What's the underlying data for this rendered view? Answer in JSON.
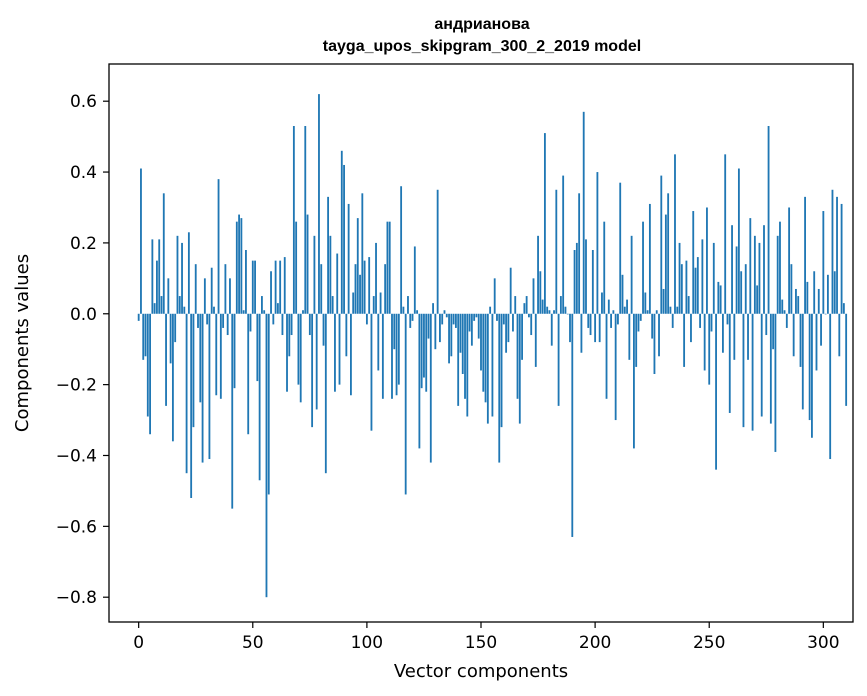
{
  "chart_data": {
    "type": "bar",
    "title": "андрианова",
    "subtitle": "tayga_upos_skipgram_300_2_2019 model",
    "xlabel": "Vector components",
    "ylabel": "Components values",
    "xlim": [
      -13,
      313
    ],
    "ylim": [
      -0.87,
      0.705
    ],
    "xticks": [
      0,
      50,
      100,
      150,
      200,
      250,
      300
    ],
    "yticks": [
      -0.8,
      -0.6,
      -0.4,
      -0.2,
      0.0,
      0.2,
      0.4,
      0.6
    ],
    "ytick_labels": [
      "−0.8",
      "−0.6",
      "−0.4",
      "−0.2",
      "0.0",
      "0.2",
      "0.4",
      "0.6"
    ],
    "bar_color": "#1f77b4",
    "grid": false,
    "values": [
      -0.02,
      0.41,
      -0.13,
      -0.12,
      -0.29,
      -0.34,
      0.21,
      0.03,
      0.15,
      0.21,
      0.05,
      0.34,
      -0.26,
      0.1,
      -0.14,
      -0.36,
      -0.08,
      0.22,
      0.05,
      0.2,
      0.02,
      -0.45,
      0.23,
      -0.52,
      -0.32,
      0.14,
      -0.04,
      -0.25,
      -0.42,
      0.1,
      -0.03,
      -0.41,
      0.13,
      0.02,
      -0.23,
      0.38,
      -0.24,
      -0.04,
      0.14,
      -0.06,
      0.1,
      -0.55,
      -0.21,
      0.26,
      0.28,
      0.27,
      0.01,
      0.18,
      -0.34,
      -0.05,
      0.15,
      0.15,
      -0.19,
      -0.47,
      0.05,
      0.01,
      -0.8,
      -0.51,
      0.12,
      -0.03,
      0.15,
      0.03,
      0.15,
      -0.06,
      0.16,
      -0.22,
      -0.12,
      -0.06,
      0.53,
      0.26,
      -0.2,
      -0.25,
      0.01,
      0.53,
      0.28,
      -0.06,
      -0.32,
      0.22,
      -0.27,
      0.62,
      0.14,
      -0.09,
      -0.45,
      0.33,
      0.22,
      0.05,
      -0.22,
      0.17,
      -0.2,
      0.46,
      0.42,
      -0.12,
      0.31,
      -0.23,
      0.06,
      0.14,
      0.27,
      0.11,
      0.34,
      0.15,
      -0.03,
      0.16,
      -0.33,
      0.05,
      0.2,
      -0.16,
      0.06,
      -0.24,
      0.14,
      0.26,
      0.26,
      -0.24,
      -0.1,
      -0.23,
      -0.2,
      0.36,
      0.02,
      -0.51,
      0.05,
      -0.04,
      -0.02,
      0.19,
      0.01,
      -0.38,
      -0.21,
      -0.18,
      -0.22,
      -0.07,
      -0.42,
      0.03,
      -0.1,
      0.35,
      -0.08,
      -0.03,
      0.01,
      -0.01,
      -0.14,
      -0.12,
      -0.03,
      -0.04,
      -0.26,
      -0.11,
      -0.17,
      -0.24,
      -0.29,
      -0.05,
      -0.09,
      -0.02,
      -0.01,
      -0.07,
      -0.16,
      -0.22,
      -0.25,
      -0.31,
      0.02,
      -0.29,
      0.1,
      -0.02,
      -0.42,
      -0.32,
      -0.03,
      -0.11,
      -0.08,
      0.13,
      -0.05,
      0.05,
      -0.24,
      -0.31,
      -0.13,
      0.03,
      0.05,
      -0.01,
      -0.06,
      0.1,
      -0.15,
      0.22,
      0.12,
      0.04,
      0.51,
      0.02,
      0.01,
      -0.09,
      0.01,
      0.35,
      -0.26,
      0.05,
      0.39,
      0.02,
      0.0,
      -0.08,
      -0.63,
      0.18,
      0.2,
      0.34,
      -0.11,
      0.57,
      0.21,
      -0.04,
      -0.06,
      0.18,
      -0.08,
      0.4,
      -0.08,
      0.06,
      0.26,
      -0.24,
      0.04,
      -0.04,
      0.01,
      -0.3,
      -0.03,
      0.37,
      0.11,
      0.02,
      0.04,
      -0.13,
      0.22,
      -0.38,
      -0.15,
      -0.05,
      -0.02,
      0.26,
      0.06,
      0.01,
      0.31,
      -0.07,
      -0.17,
      0.01,
      -0.12,
      0.39,
      0.07,
      0.28,
      0.34,
      0.02,
      -0.04,
      0.45,
      0.02,
      0.2,
      0.14,
      -0.15,
      0.15,
      0.05,
      -0.08,
      0.29,
      0.13,
      0.16,
      -0.04,
      0.21,
      -0.16,
      0.3,
      -0.2,
      -0.05,
      0.2,
      -0.44,
      0.09,
      0.08,
      -0.11,
      0.45,
      -0.03,
      -0.28,
      0.25,
      -0.13,
      0.19,
      0.41,
      0.12,
      -0.32,
      0.14,
      -0.13,
      0.27,
      -0.33,
      0.22,
      0.08,
      0.2,
      -0.29,
      0.25,
      -0.06,
      0.53,
      -0.31,
      -0.1,
      -0.39,
      0.22,
      0.26,
      0.04,
      0.01,
      -0.04,
      0.3,
      0.14,
      -0.12,
      0.07,
      0.05,
      -0.15,
      -0.27,
      0.33,
      0.09,
      -0.3,
      -0.35,
      0.12,
      -0.16,
      0.07,
      -0.09,
      0.29,
      0.0,
      0.11,
      -0.41,
      0.35,
      0.12,
      0.33,
      -0.12,
      0.31,
      0.03,
      -0.26
    ]
  }
}
